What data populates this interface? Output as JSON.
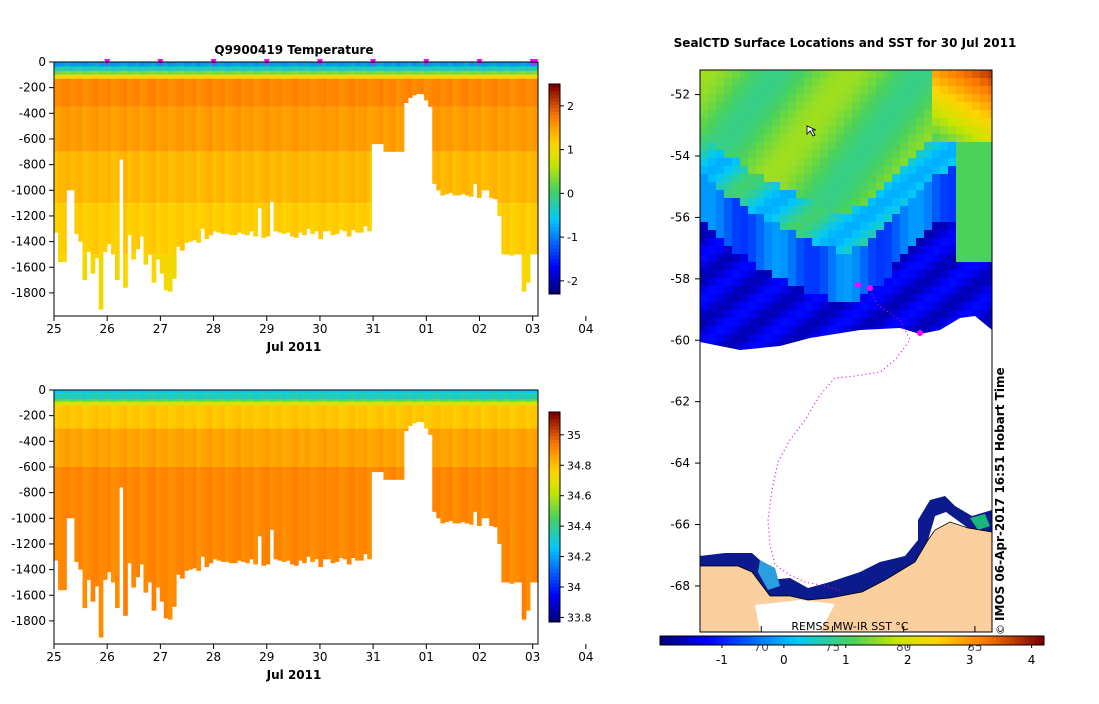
{
  "chart_data": [
    {
      "type": "heatmap",
      "title": "Q9900419  Temperature",
      "xlabel": "Jul 2011",
      "ylabel": "",
      "x_ticks": [
        "25",
        "26",
        "27",
        "28",
        "29",
        "30",
        "31",
        "01",
        "02",
        "03",
        "04"
      ],
      "y_ticks": [
        "0",
        "-200",
        "-400",
        "-600",
        "-800",
        "-1000",
        "-1200",
        "-1400",
        "-1600",
        "-1800"
      ],
      "y_tick_values": [
        0,
        -200,
        -400,
        -600,
        -800,
        -1000,
        -1200,
        -1400,
        -1600,
        -1800
      ],
      "xlim": [
        25,
        34.1
      ],
      "ylim": [
        -1980,
        0
      ],
      "colorbar": {
        "min": -2.3,
        "max": 2.5,
        "ticks": [
          "2",
          "1",
          "0",
          "-1",
          "-2"
        ],
        "tick_values": [
          2,
          1,
          0,
          -1,
          -2
        ]
      },
      "profile_markers_days": [
        26,
        27,
        28,
        29,
        30,
        31,
        32,
        33,
        34,
        34.05
      ],
      "profile_max_depths": [
        1330,
        1560,
        1560,
        1000,
        1000,
        1340,
        1400,
        1700,
        1480,
        1650,
        1530,
        1930,
        1480,
        1420,
        1500,
        1700,
        760,
        1760,
        1350,
        1540,
        1460,
        1360,
        1580,
        1500,
        1720,
        1540,
        1650,
        1780,
        1790,
        1690,
        1440,
        1470,
        1410,
        1400,
        1390,
        1410,
        1300,
        1380,
        1350,
        1320,
        1330,
        1340,
        1340,
        1350,
        1350,
        1330,
        1340,
        1350,
        1320,
        1360,
        1140,
        1370,
        1360,
        1090,
        1320,
        1330,
        1340,
        1330,
        1360,
        1370,
        1330,
        1350,
        1300,
        1340,
        1320,
        1380,
        1320,
        1320,
        1350,
        1340,
        1310,
        1320,
        1360,
        1310,
        1330,
        1330,
        1280,
        1320,
        640,
        640,
        640,
        700,
        700,
        700,
        700,
        700,
        320,
        280,
        260,
        250,
        250,
        300,
        350,
        950,
        1000,
        1040,
        1030,
        1020,
        1040,
        1040,
        1030,
        1040,
        1050,
        950,
        1060,
        1000,
        1000,
        1060,
        1070,
        1200,
        1500,
        1500,
        1510,
        1500,
        1500,
        1790,
        1720,
        1500,
        1500
      ]
    },
    {
      "type": "heatmap",
      "title": "",
      "xlabel": "Jul 2011",
      "ylabel": "",
      "x_ticks": [
        "25",
        "26",
        "27",
        "28",
        "29",
        "30",
        "31",
        "01",
        "02",
        "03",
        "04"
      ],
      "y_ticks": [
        "0",
        "-200",
        "-400",
        "-600",
        "-800",
        "-1000",
        "-1200",
        "-1400",
        "-1600",
        "-1800"
      ],
      "y_tick_values": [
        0,
        -200,
        -400,
        -600,
        -800,
        -1000,
        -1200,
        -1400,
        -1600,
        -1800
      ],
      "xlim": [
        25,
        34.1
      ],
      "ylim": [
        -1980,
        0
      ],
      "colorbar": {
        "min": 33.77,
        "max": 35.15,
        "ticks": [
          "35",
          "34.8",
          "34.6",
          "34.4",
          "34.2",
          "34",
          "33.8"
        ],
        "tick_values": [
          35,
          34.8,
          34.6,
          34.4,
          34.2,
          34,
          33.8
        ]
      }
    },
    {
      "type": "heatmap",
      "title": "SealCTD Surface Locations and SST for 30 Jul 2011",
      "xlabel": "",
      "ylabel": "",
      "x_ticks": [
        "70",
        "75",
        "80",
        "85"
      ],
      "x_tick_values": [
        70,
        75,
        80,
        85
      ],
      "y_ticks": [
        "-52",
        "-54",
        "-56",
        "-58",
        "-60",
        "-62",
        "-64",
        "-66",
        "-68"
      ],
      "y_tick_values": [
        -52,
        -54,
        -56,
        -58,
        -60,
        -62,
        -64,
        -66,
        -68
      ],
      "xlim": [
        65.7,
        86.2
      ],
      "ylim": [
        -69.5,
        -51.2
      ],
      "colorbar": {
        "label": "REMSS MW-IR SST °C",
        "min": -2,
        "max": 4.2,
        "ticks": [
          "-1",
          "0",
          "1",
          "2",
          "3",
          "4"
        ],
        "tick_values": [
          -1,
          0,
          1,
          2,
          3,
          4
        ]
      },
      "credit": "IMOS 06-Apr-2017 16:51 Hobart Time",
      "copyright_symbol": "©"
    }
  ]
}
